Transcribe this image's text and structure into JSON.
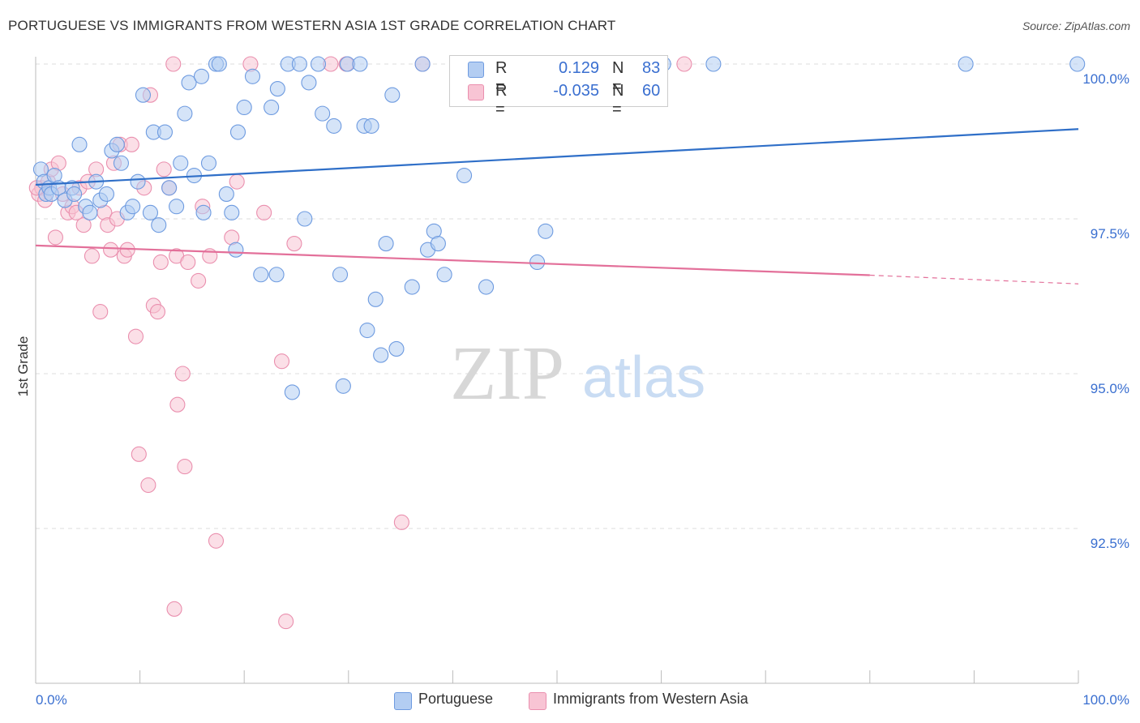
{
  "title": "PORTUGUESE VS IMMIGRANTS FROM WESTERN ASIA 1ST GRADE CORRELATION CHART",
  "source": "Source: ZipAtlas.com",
  "watermark": {
    "zip": "ZIP",
    "atlas": "atlas"
  },
  "legend": {
    "r_label": "R =",
    "n_label": "N =",
    "rows": [
      {
        "r": "0.129",
        "n": "83",
        "fill": "#b3cdf2",
        "stroke": "#6e9be0"
      },
      {
        "r": "-0.035",
        "n": "60",
        "fill": "#f8c4d4",
        "stroke": "#ea8fae"
      }
    ]
  },
  "bottom_legend": [
    "Portuguese",
    "Immigrants from Western Asia"
  ],
  "colors": {
    "blue_line": "#2f6fc8",
    "pink_line": "#e3709a",
    "blue_point_fill": "#b3cdf2",
    "blue_point_stroke": "#6e9be0",
    "pink_point_fill": "#f8c4d4",
    "pink_point_stroke": "#ea8fae",
    "axis_label": "#3a6fd0",
    "grid": "#dddddd"
  },
  "chart_data": {
    "type": "scatter",
    "title": "PORTUGUESE VS IMMIGRANTS FROM WESTERN ASIA 1ST GRADE CORRELATION CHART",
    "xlabel": "",
    "ylabel": "1st Grade",
    "xlim": [
      0,
      100
    ],
    "ylim": [
      90.2,
      100.5
    ],
    "x_tick_labels": [
      "0.0%",
      "100.0%"
    ],
    "y_ticks": [
      {
        "value": 100.0,
        "label": "100.0%"
      },
      {
        "value": 97.5,
        "label": "97.5%"
      },
      {
        "value": 95.0,
        "label": "95.0%"
      },
      {
        "value": 92.5,
        "label": "92.5%"
      }
    ],
    "grid": true,
    "series": [
      {
        "name": "Portuguese",
        "r": 0.129,
        "n": 83,
        "trend": {
          "x0": 0,
          "y0": 98.05,
          "x1": 100,
          "y1": 98.95
        },
        "points": [
          [
            0.5,
            98.3
          ],
          [
            0.8,
            98.1
          ],
          [
            1.0,
            97.9
          ],
          [
            1.3,
            98.0
          ],
          [
            1.5,
            97.9
          ],
          [
            1.8,
            98.2
          ],
          [
            2.2,
            98.0
          ],
          [
            2.8,
            97.8
          ],
          [
            3.5,
            98.0
          ],
          [
            3.7,
            97.9
          ],
          [
            4.2,
            98.7
          ],
          [
            4.8,
            97.7
          ],
          [
            5.2,
            97.6
          ],
          [
            5.8,
            98.1
          ],
          [
            6.2,
            97.8
          ],
          [
            6.8,
            97.9
          ],
          [
            7.3,
            98.6
          ],
          [
            7.8,
            98.7
          ],
          [
            8.2,
            98.4
          ],
          [
            8.8,
            97.6
          ],
          [
            9.3,
            97.7
          ],
          [
            9.8,
            98.1
          ],
          [
            10.3,
            99.5
          ],
          [
            11.0,
            97.6
          ],
          [
            11.3,
            98.9
          ],
          [
            11.8,
            97.4
          ],
          [
            12.4,
            98.9
          ],
          [
            12.8,
            98.0
          ],
          [
            13.5,
            97.7
          ],
          [
            13.9,
            98.4
          ],
          [
            14.3,
            99.2
          ],
          [
            14.7,
            99.7
          ],
          [
            15.2,
            98.2
          ],
          [
            15.9,
            99.8
          ],
          [
            16.1,
            97.6
          ],
          [
            16.6,
            98.4
          ],
          [
            17.3,
            100.0
          ],
          [
            17.6,
            100.0
          ],
          [
            18.3,
            97.9
          ],
          [
            18.8,
            97.6
          ],
          [
            19.2,
            97.0
          ],
          [
            19.4,
            98.9
          ],
          [
            20.0,
            99.3
          ],
          [
            20.8,
            99.8
          ],
          [
            21.6,
            96.6
          ],
          [
            22.6,
            99.3
          ],
          [
            23.1,
            96.6
          ],
          [
            23.2,
            99.6
          ],
          [
            24.2,
            100.0
          ],
          [
            24.6,
            94.7
          ],
          [
            25.3,
            100.0
          ],
          [
            25.8,
            97.5
          ],
          [
            26.2,
            99.7
          ],
          [
            27.1,
            100.0
          ],
          [
            27.5,
            99.2
          ],
          [
            28.6,
            99.0
          ],
          [
            29.2,
            96.6
          ],
          [
            29.5,
            94.8
          ],
          [
            29.9,
            100.0
          ],
          [
            31.1,
            100.0
          ],
          [
            31.5,
            99.0
          ],
          [
            31.8,
            95.7
          ],
          [
            32.2,
            99.0
          ],
          [
            32.6,
            96.2
          ],
          [
            33.1,
            95.3
          ],
          [
            33.6,
            97.1
          ],
          [
            34.2,
            99.5
          ],
          [
            34.6,
            95.4
          ],
          [
            36.1,
            96.4
          ],
          [
            37.1,
            100.0
          ],
          [
            37.6,
            97.0
          ],
          [
            38.2,
            97.3
          ],
          [
            38.6,
            97.1
          ],
          [
            39.2,
            96.6
          ],
          [
            41.1,
            98.2
          ],
          [
            43.2,
            96.4
          ],
          [
            45.7,
            100.0
          ],
          [
            48.1,
            96.8
          ],
          [
            48.9,
            97.3
          ],
          [
            60.2,
            100.0
          ],
          [
            65.0,
            100.0
          ],
          [
            89.2,
            100.0
          ],
          [
            99.9,
            100.0
          ]
        ]
      },
      {
        "name": "Immigrants from Western Asia",
        "r": -0.035,
        "n": 60,
        "trend": {
          "x0": 0,
          "y0": 97.07,
          "x1": 80,
          "y1": 96.59,
          "dashed_to": {
            "x": 100,
            "y": 96.45
          }
        },
        "points": [
          [
            0.3,
            97.9
          ],
          [
            0.6,
            98.0
          ],
          [
            0.9,
            97.8
          ],
          [
            1.2,
            98.1
          ],
          [
            1.5,
            98.3
          ],
          [
            1.9,
            97.2
          ],
          [
            2.2,
            98.4
          ],
          [
            2.6,
            97.9
          ],
          [
            3.1,
            97.6
          ],
          [
            3.5,
            97.7
          ],
          [
            3.9,
            97.6
          ],
          [
            4.2,
            98.0
          ],
          [
            4.6,
            97.4
          ],
          [
            5.0,
            98.1
          ],
          [
            5.4,
            96.9
          ],
          [
            5.8,
            98.3
          ],
          [
            6.2,
            96.0
          ],
          [
            6.6,
            97.6
          ],
          [
            6.9,
            97.4
          ],
          [
            7.2,
            97.0
          ],
          [
            7.5,
            98.4
          ],
          [
            7.8,
            97.5
          ],
          [
            8.1,
            98.7
          ],
          [
            8.5,
            96.9
          ],
          [
            8.8,
            97.0
          ],
          [
            9.2,
            98.7
          ],
          [
            9.6,
            95.6
          ],
          [
            9.9,
            93.7
          ],
          [
            10.4,
            98.0
          ],
          [
            10.8,
            93.2
          ],
          [
            11.0,
            99.5
          ],
          [
            11.3,
            96.1
          ],
          [
            11.7,
            96.0
          ],
          [
            12.0,
            96.8
          ],
          [
            12.3,
            98.3
          ],
          [
            12.8,
            98.0
          ],
          [
            13.2,
            100.0
          ],
          [
            13.5,
            96.9
          ],
          [
            13.3,
            91.2
          ],
          [
            13.6,
            94.5
          ],
          [
            14.1,
            95.0
          ],
          [
            14.3,
            93.5
          ],
          [
            14.6,
            96.8
          ],
          [
            15.6,
            96.5
          ],
          [
            16.0,
            97.7
          ],
          [
            16.7,
            96.9
          ],
          [
            17.3,
            92.3
          ],
          [
            18.8,
            97.2
          ],
          [
            19.3,
            98.1
          ],
          [
            20.6,
            100.0
          ],
          [
            21.9,
            97.6
          ],
          [
            23.6,
            95.2
          ],
          [
            24.0,
            91.0
          ],
          [
            24.8,
            97.1
          ],
          [
            28.3,
            100.0
          ],
          [
            29.8,
            100.0
          ],
          [
            35.1,
            92.6
          ],
          [
            37.1,
            100.0
          ],
          [
            62.2,
            100.0
          ],
          [
            0.1,
            98.0
          ]
        ]
      }
    ]
  }
}
